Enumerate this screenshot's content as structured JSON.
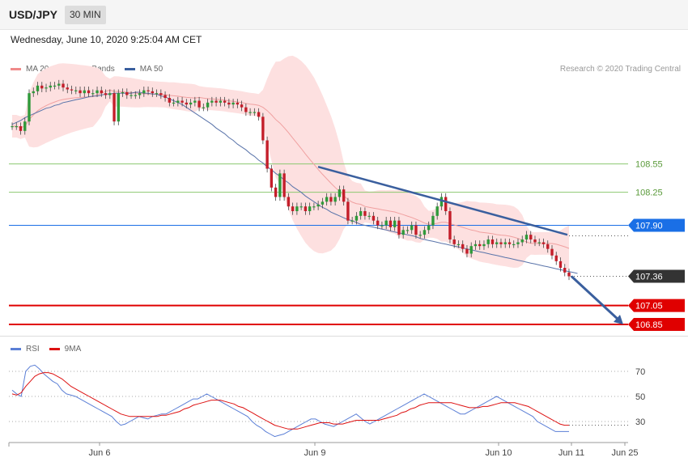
{
  "header": {
    "symbol": "USD/JPY",
    "timeframe": "30 MIN"
  },
  "timestamp": "Wednesday, June 10, 2020 9:25:04 AM CET",
  "legend": [
    {
      "label": "MA 20 + Bollinger Bands",
      "color": "#f08a8a"
    },
    {
      "label": "MA 50",
      "color": "#3a5f9e"
    }
  ],
  "credit": "Research © 2020 Trading Central",
  "rsi_legend": [
    {
      "label": "RSI",
      "color": "#5b7fd6"
    },
    {
      "label": "9MA",
      "color": "#dd1111"
    }
  ],
  "colors": {
    "bull": "#2f9a3a",
    "bear": "#c41e2a",
    "target": "#e00000",
    "pivot": "#1a6fe6",
    "support": "#8cc870"
  },
  "chart_data": [
    {
      "type": "candlestick",
      "ylim": [
        106.73,
        109.43
      ],
      "x_labels": [
        "Jun 6",
        "Jun 9",
        "Jun 10",
        "Jun 11",
        "Jun 25"
      ],
      "levels": [
        {
          "value": 108.55,
          "label": "108.55",
          "kind": "resistance"
        },
        {
          "value": 108.25,
          "label": "108.25",
          "kind": "resistance"
        },
        {
          "value": 107.9,
          "label": "107.90",
          "kind": "pivot"
        },
        {
          "value": 107.36,
          "label": "107.36",
          "kind": "last"
        },
        {
          "value": 107.05,
          "label": "107.05",
          "kind": "target"
        },
        {
          "value": 106.85,
          "label": "106.85",
          "kind": "target"
        }
      ],
      "closes": [
        108.95,
        108.95,
        108.9,
        109.0,
        109.3,
        109.32,
        109.38,
        109.35,
        109.36,
        109.38,
        109.38,
        109.4,
        109.36,
        109.34,
        109.33,
        109.33,
        109.3,
        109.33,
        109.3,
        109.3,
        109.33,
        109.3,
        109.28,
        109.3,
        109.0,
        109.3,
        109.31,
        109.28,
        109.28,
        109.28,
        109.3,
        109.33,
        109.32,
        109.3,
        109.3,
        109.28,
        109.25,
        109.2,
        109.2,
        109.22,
        109.2,
        109.18,
        109.2,
        109.22,
        109.15,
        109.15,
        109.2,
        109.22,
        109.2,
        109.22,
        109.2,
        109.18,
        109.2,
        109.18,
        109.15,
        109.1,
        109.1,
        109.1,
        109.05,
        108.8,
        108.5,
        108.3,
        108.2,
        108.45,
        108.2,
        108.1,
        108.05,
        108.1,
        108.1,
        108.05,
        108.1,
        108.1,
        108.12,
        108.15,
        108.2,
        108.15,
        108.2,
        108.28,
        108.15,
        107.95,
        107.95,
        108.0,
        108.05,
        108.0,
        108.0,
        107.95,
        107.9,
        107.9,
        107.95,
        107.88,
        107.95,
        107.8,
        107.85,
        107.85,
        107.9,
        107.8,
        107.8,
        107.85,
        107.9,
        108.0,
        108.1,
        108.2,
        108.05,
        107.75,
        107.7,
        107.7,
        107.65,
        107.6,
        107.68,
        107.7,
        107.68,
        107.7,
        107.75,
        107.7,
        107.72,
        107.7,
        107.72,
        107.7,
        107.7,
        107.72,
        107.75,
        107.8,
        107.75,
        107.72,
        107.72,
        107.7,
        107.65,
        107.58,
        107.52,
        107.45,
        107.4,
        107.36
      ],
      "ma50": [
        108.97,
        108.99,
        109.01,
        109.04,
        109.06,
        109.08,
        109.1,
        109.12,
        109.14,
        109.15,
        109.17,
        109.18,
        109.2,
        109.21,
        109.22,
        109.23,
        109.24,
        109.25,
        109.26,
        109.27,
        109.27,
        109.28,
        109.29,
        109.29,
        109.3,
        109.3,
        109.3,
        109.3,
        109.3,
        109.31,
        109.31,
        109.3,
        109.3,
        109.29,
        109.29,
        109.27,
        109.26,
        109.24,
        109.22,
        109.2,
        109.18,
        109.15,
        109.12,
        109.09,
        109.06,
        109.03,
        109.0,
        108.97,
        108.93,
        108.9,
        108.87,
        108.83,
        108.8,
        108.76,
        108.73,
        108.7,
        108.66,
        108.63,
        108.59,
        108.56,
        108.52,
        108.49,
        108.45,
        108.42,
        108.38,
        108.35,
        108.31,
        108.28,
        108.25,
        108.21,
        108.18,
        108.15,
        108.12,
        108.09,
        108.07,
        108.04,
        108.02,
        108.0,
        107.98,
        107.96,
        107.95,
        107.93,
        107.91,
        107.9,
        107.89,
        107.88,
        107.87,
        107.86,
        107.85,
        107.84,
        107.83,
        107.82,
        107.81,
        107.8,
        107.79,
        107.78,
        107.76,
        107.75,
        107.74,
        107.73,
        107.72,
        107.71,
        107.7,
        107.69,
        107.68,
        107.67,
        107.66,
        107.65,
        107.64,
        107.63,
        107.62,
        107.61,
        107.6,
        107.59,
        107.58,
        107.57,
        107.56,
        107.55,
        107.54,
        107.53,
        107.52,
        107.51,
        107.5,
        107.49,
        107.48,
        107.47,
        107.46,
        107.45,
        107.44,
        107.43,
        107.42,
        107.41,
        107.4,
        107.39
      ],
      "trendline": [
        {
          "x": "Jun 9",
          "value": 108.52
        },
        {
          "x": "Jun 11",
          "value": 107.8
        }
      ],
      "forecast_arrow": [
        {
          "value": 107.36
        },
        {
          "value": 106.85
        }
      ]
    },
    {
      "type": "line",
      "series": [
        {
          "name": "RSI"
        },
        {
          "name": "9MA"
        }
      ],
      "yticks": [
        70,
        50,
        30
      ],
      "rsi": [
        55,
        52,
        50,
        70,
        74,
        75,
        72,
        68,
        65,
        62,
        60,
        55,
        52,
        51,
        50,
        48,
        46,
        44,
        42,
        40,
        38,
        36,
        34,
        30,
        27,
        28,
        30,
        32,
        34,
        33,
        32,
        34,
        35,
        36,
        36,
        38,
        40,
        42,
        44,
        46,
        48,
        48,
        50,
        52,
        50,
        48,
        46,
        44,
        42,
        40,
        38,
        36,
        34,
        30,
        27,
        25,
        22,
        20,
        18,
        19,
        20,
        22,
        24,
        26,
        28,
        30,
        32,
        32,
        30,
        28,
        27,
        26,
        28,
        30,
        32,
        34,
        36,
        33,
        30,
        28,
        30,
        32,
        34,
        36,
        38,
        40,
        42,
        44,
        46,
        48,
        50,
        52,
        50,
        48,
        46,
        44,
        42,
        40,
        38,
        36,
        36,
        38,
        40,
        42,
        44,
        46,
        48,
        50,
        48,
        46,
        44,
        42,
        40,
        38,
        36,
        34,
        30,
        28,
        26,
        24,
        22,
        22,
        22,
        22
      ],
      "ma9": [
        52,
        51,
        53,
        58,
        62,
        66,
        68,
        69,
        69,
        68,
        66,
        64,
        61,
        58,
        56,
        54,
        52,
        50,
        48,
        46,
        44,
        42,
        40,
        38,
        36,
        35,
        34,
        34,
        34,
        34,
        34,
        34,
        34,
        35,
        35,
        36,
        37,
        38,
        40,
        41,
        43,
        44,
        45,
        46,
        47,
        47,
        47,
        46,
        45,
        44,
        42,
        41,
        39,
        37,
        35,
        33,
        31,
        29,
        27,
        26,
        25,
        24,
        24,
        24,
        25,
        26,
        27,
        28,
        29,
        29,
        29,
        28,
        28,
        28,
        29,
        30,
        31,
        31,
        31,
        31,
        31,
        31,
        32,
        33,
        34,
        35,
        37,
        38,
        40,
        41,
        43,
        44,
        45,
        45,
        45,
        45,
        45,
        45,
        44,
        43,
        42,
        41,
        41,
        41,
        42,
        42,
        43,
        44,
        45,
        45,
        45,
        45,
        44,
        43,
        42,
        40,
        38,
        36,
        34,
        32,
        30,
        28,
        27,
        27
      ]
    }
  ]
}
